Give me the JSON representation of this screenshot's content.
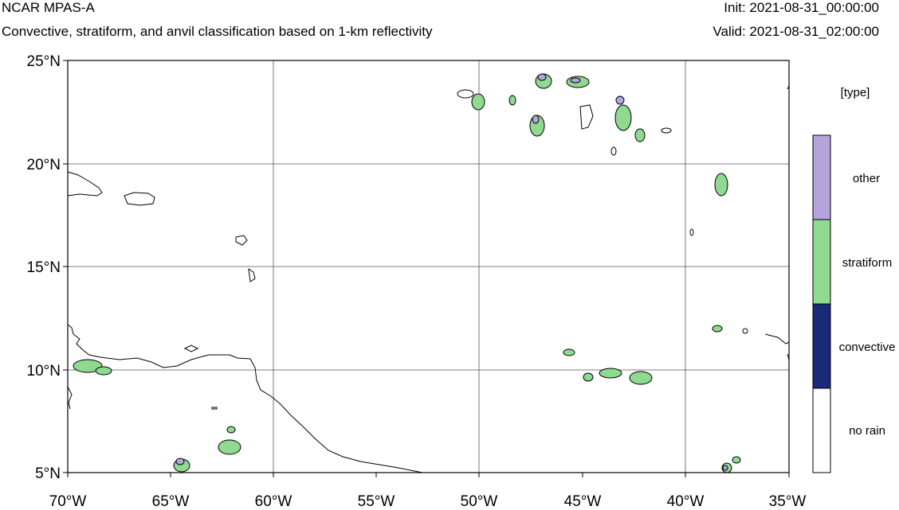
{
  "header": {
    "title": "NCAR MPAS-A",
    "subtitle": "Convective, stratiform, and anvil classification based on 1-km reflectivity",
    "init": "Init: 2021-08-31_00:00:00",
    "valid": "Valid: 2021-08-31_02:00:00"
  },
  "map": {
    "lon_range": [
      -70,
      -35
    ],
    "lat_range": [
      5,
      25
    ],
    "x_ticks": [
      "70°W",
      "65°W",
      "60°W",
      "55°W",
      "50°W",
      "45°W",
      "40°W",
      "35°W"
    ],
    "y_ticks": [
      "25°N",
      "20°N",
      "15°N",
      "10°N",
      "5°N"
    ],
    "gridlines": true
  },
  "legend": {
    "title": "[type]",
    "entries": [
      {
        "label": "other",
        "color": "#b3a4dc"
      },
      {
        "label": "stratiform",
        "color": "#8fd990"
      },
      {
        "label": "convective",
        "color": "#1b2a78"
      },
      {
        "label": "no rain",
        "color": "#ffffff"
      }
    ]
  },
  "colors": {
    "other": "#b3a4dc",
    "stratiform": "#8fd990",
    "convective": "#1b2a78",
    "outline": "#000000"
  }
}
